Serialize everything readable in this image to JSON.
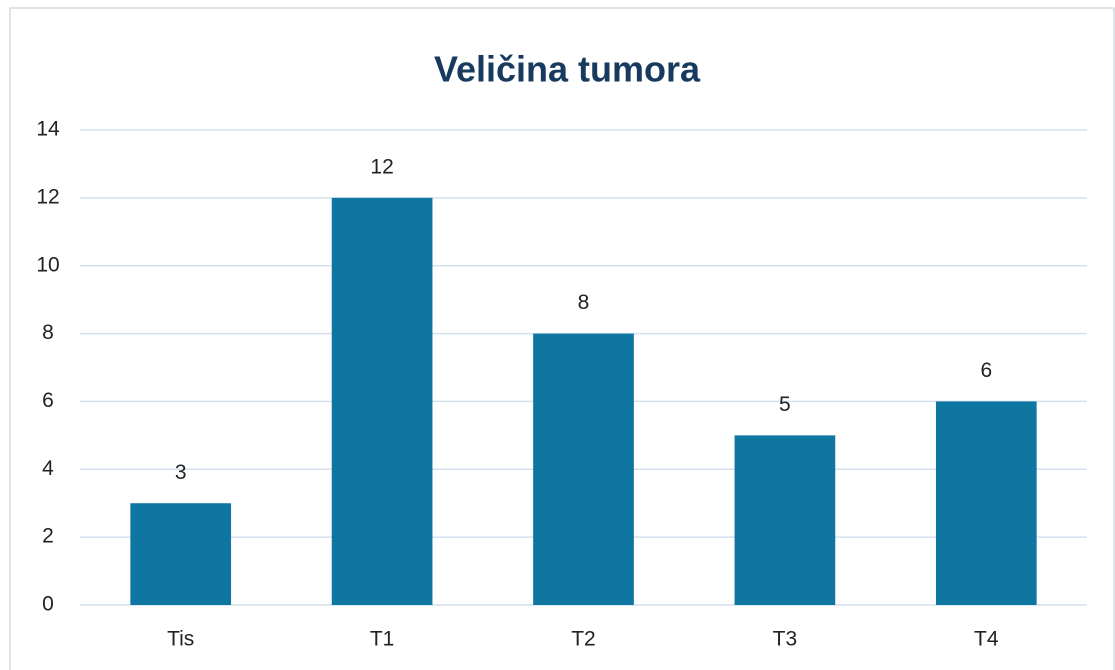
{
  "chart_data": {
    "type": "bar",
    "title": "Veličina tumora",
    "categories": [
      "Tis",
      "T1",
      "T2",
      "T3",
      "T4"
    ],
    "values": [
      3,
      12,
      8,
      5,
      6
    ],
    "color": "#0e76a0",
    "ylim": [
      0,
      14
    ],
    "yticks": [
      0,
      2,
      4,
      6,
      8,
      10,
      12,
      14
    ],
    "grid": true,
    "data_labels": true
  }
}
